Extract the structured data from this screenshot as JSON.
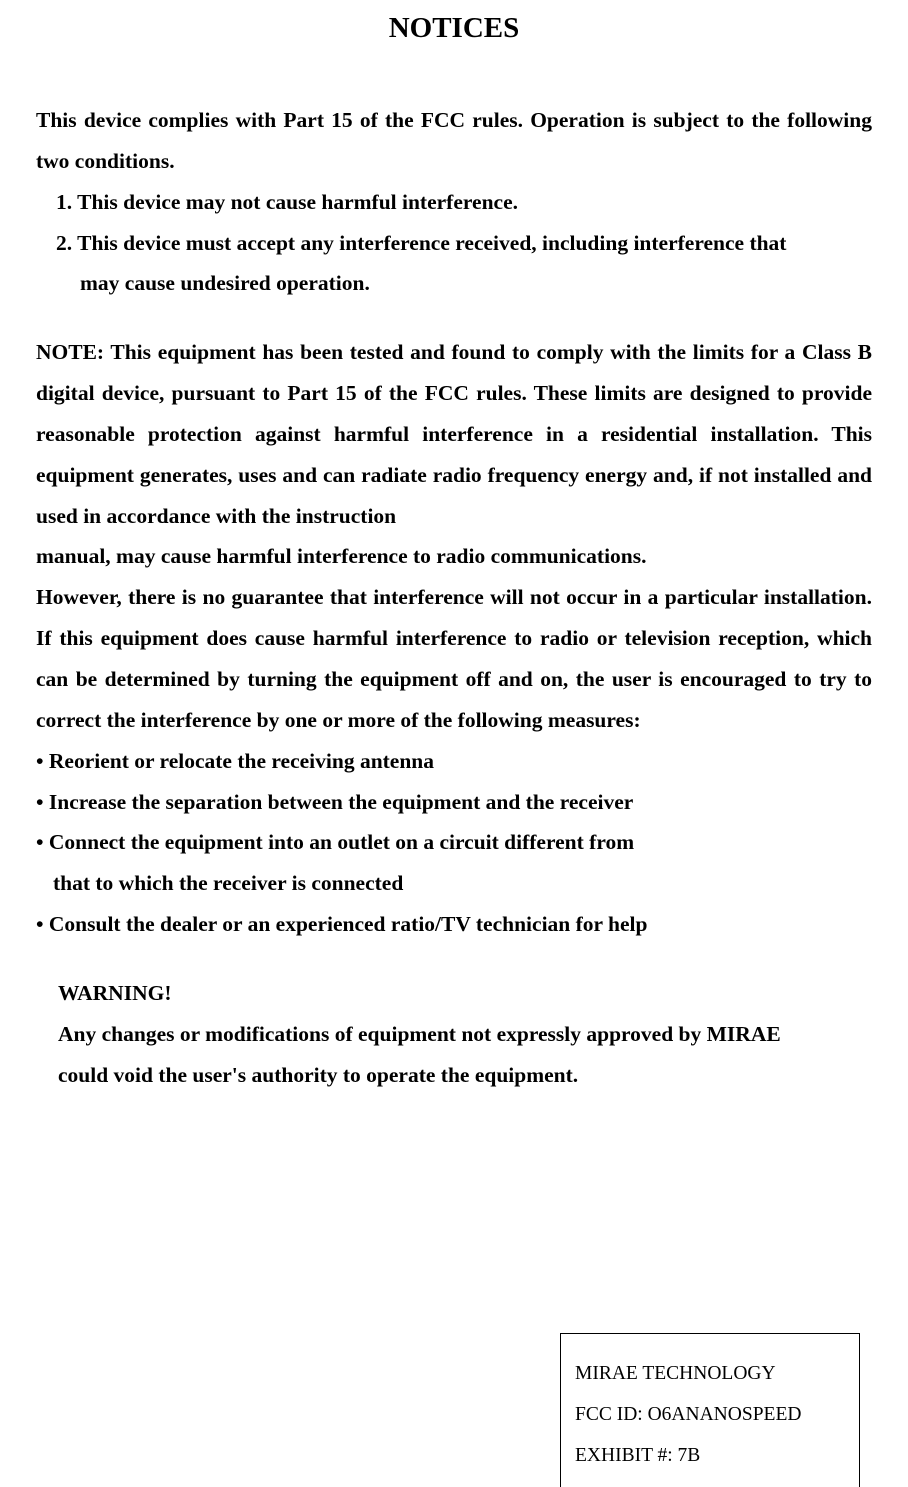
{
  "title": "NOTICES",
  "intro": "This device complies with Part 15 of the FCC rules.  Operation is subject to the following two conditions.",
  "condition1": "1. This device may not cause harmful interference.",
  "condition2": "2. This device must accept any interference received, including interference that",
  "condition2b": "may cause undesired operation.",
  "note1": "NOTE: This equipment has been tested and found to comply with the limits for a Class B digital device, pursuant to Part 15 of the FCC rules. These limits are designed to provide reasonable protection against harmful interference in a residential installation. This equipment generates, uses and can radiate radio frequency energy and, if not installed and used in accordance with the instruction",
  "note1b": "manual, may cause harmful interference to radio communications.",
  "note2": "However, there is no guarantee that interference will not occur in a particular installation. If this equipment does cause harmful interference to radio or television reception, which can be determined by turning the equipment off and on, the user is encouraged to try to correct the interference by one or more of the following measures:",
  "measure1": "• Reorient or relocate the receiving antenna",
  "measure2": "• Increase the separation between the equipment and the receiver",
  "measure3": "• Connect the equipment into an outlet on a circuit different from",
  "measure3b": "that to which the receiver is connected",
  "measure4": "• Consult the dealer or an experienced ratio/TV technician for help",
  "warning_head": "WARNING!",
  "warning_body1": "Any changes or modifications of equipment not expressly approved by MIRAE",
  "warning_body2": "could void the user's authority to operate the equipment.",
  "footer_line1": "MIRAE TECHNOLOGY",
  "footer_line2": "FCC ID:  O6ANANOSPEED",
  "footer_line3": "EXHIBIT #: 7B"
}
